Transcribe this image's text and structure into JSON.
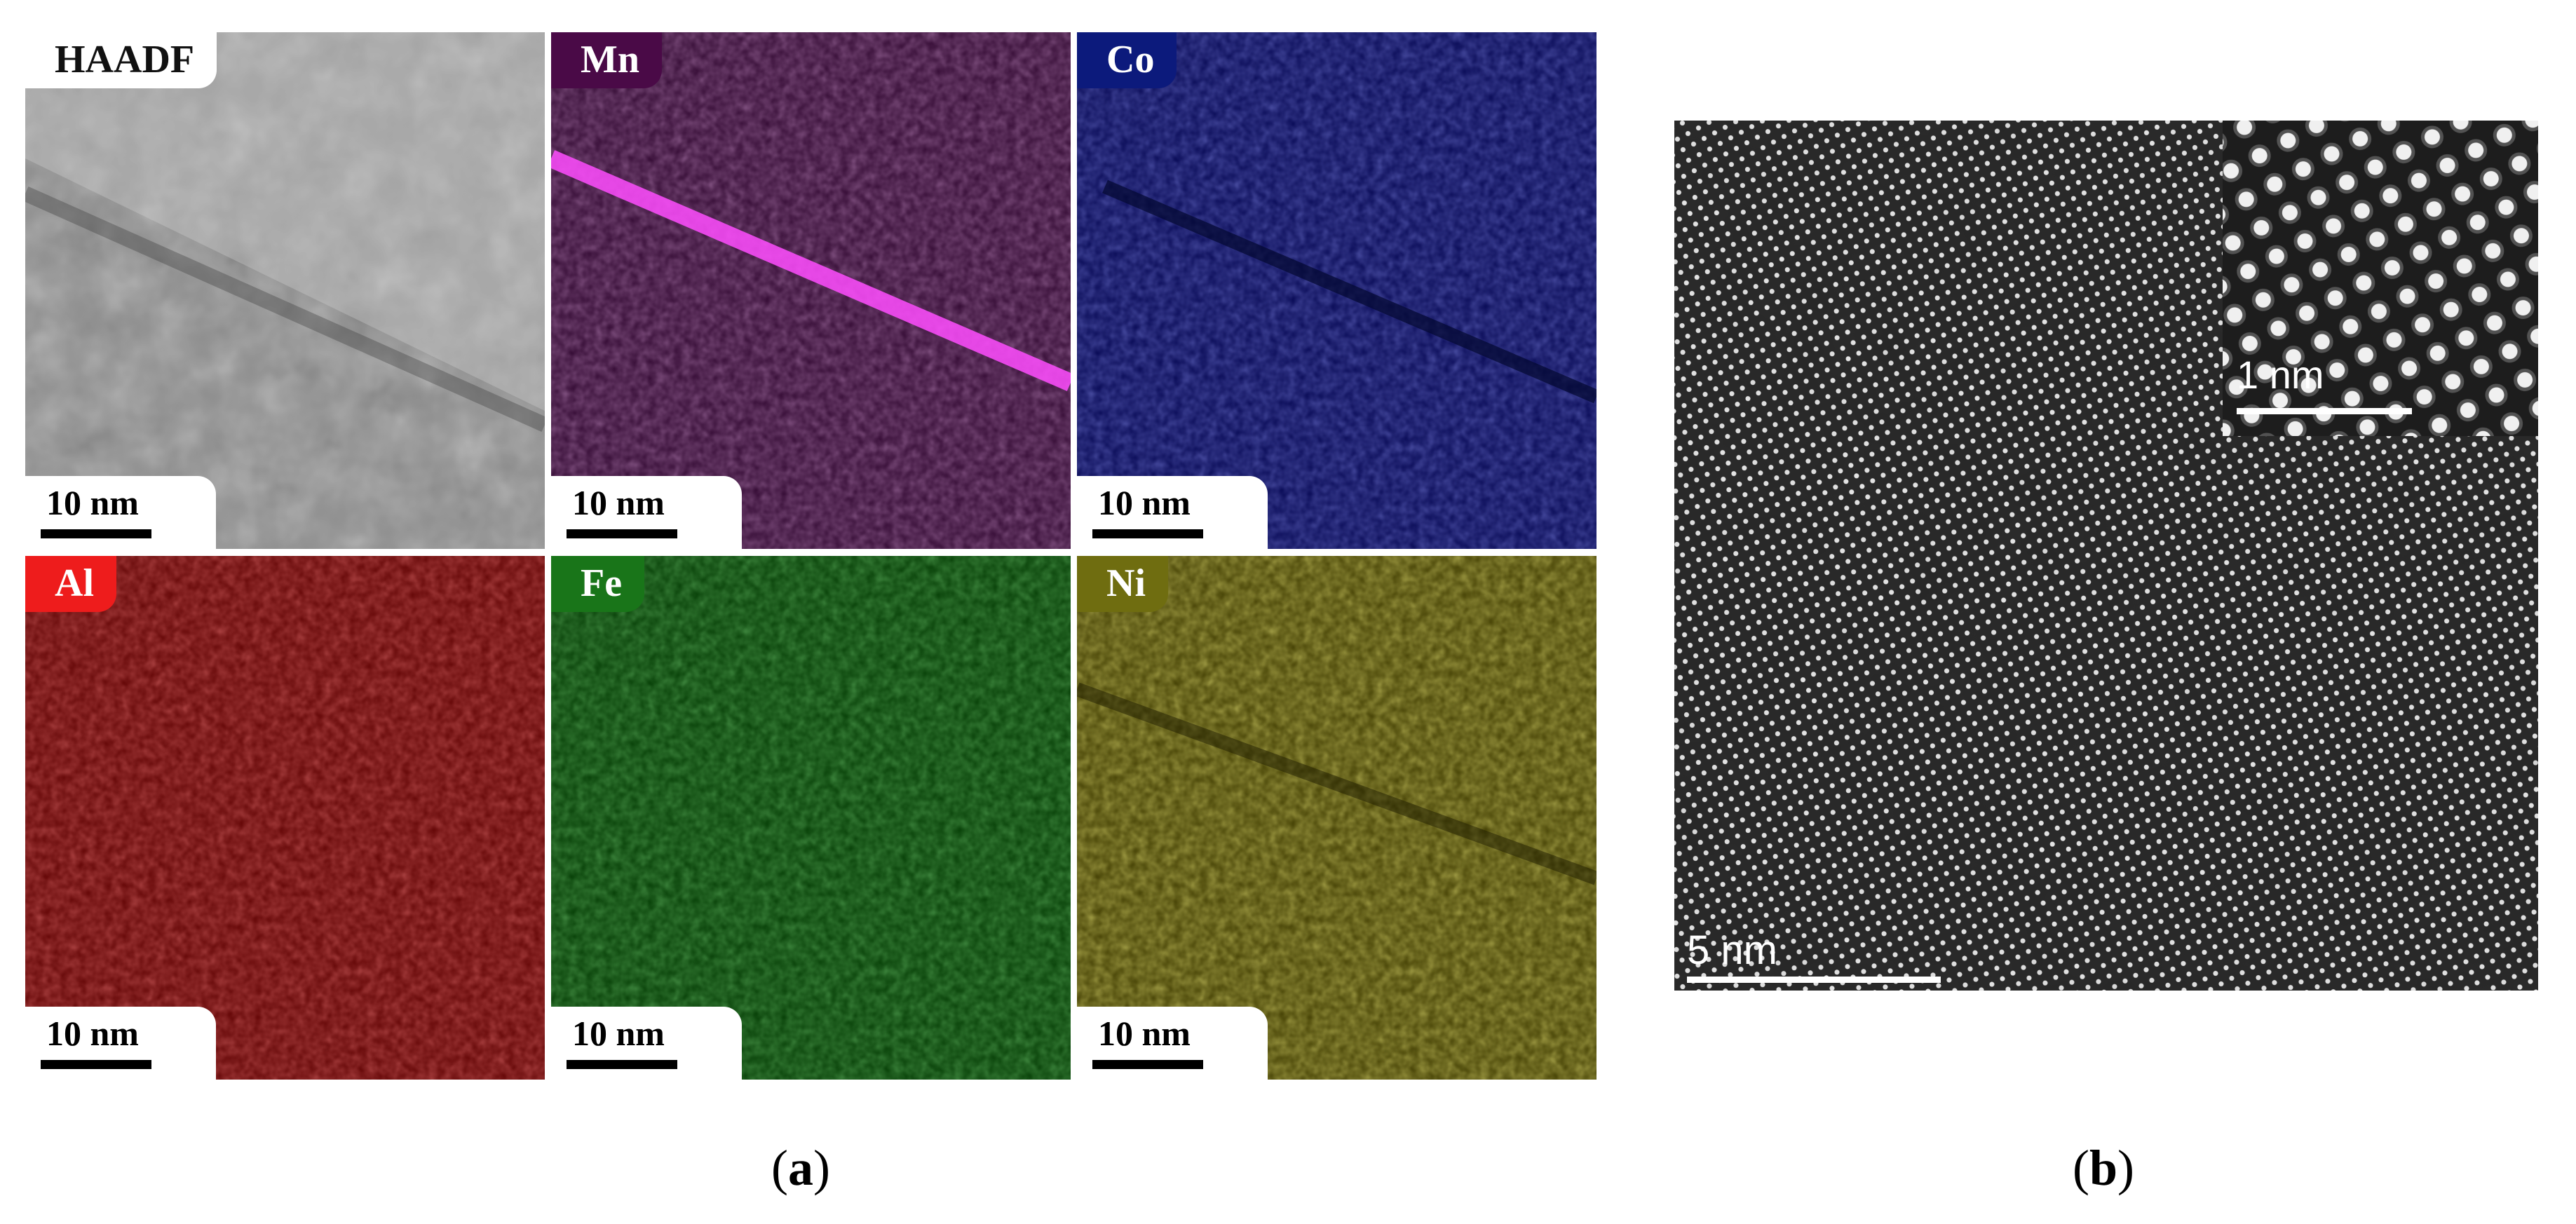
{
  "figure": {
    "panel_a": {
      "label_open": "(",
      "label_letter": "a",
      "label_close": ")",
      "tiles": [
        {
          "element": "HAADF",
          "scale": "10 nm",
          "tint": "#b4b4b4",
          "label_bg": "#ffffff"
        },
        {
          "element": "Mn",
          "scale": "10 nm",
          "tint": "#b43cb4",
          "label_bg": "#4a0a47"
        },
        {
          "element": "Co",
          "scale": "10 nm",
          "tint": "#2a35e0",
          "label_bg": "#0c1a7c"
        },
        {
          "element": "Al",
          "scale": "10 nm",
          "tint": "#dc1a1a",
          "label_bg": "#ee1c1c"
        },
        {
          "element": "Fe",
          "scale": "10 nm",
          "tint": "#1fb41f",
          "label_bg": "#197519"
        },
        {
          "element": "Ni",
          "scale": "10 nm",
          "tint": "#d2cc18",
          "label_bg": "#6f6d10"
        }
      ]
    },
    "panel_b": {
      "label_open": "(",
      "label_letter": "b",
      "label_close": ")",
      "scale_main": "5 nm",
      "scale_inset": "1 nm"
    }
  }
}
